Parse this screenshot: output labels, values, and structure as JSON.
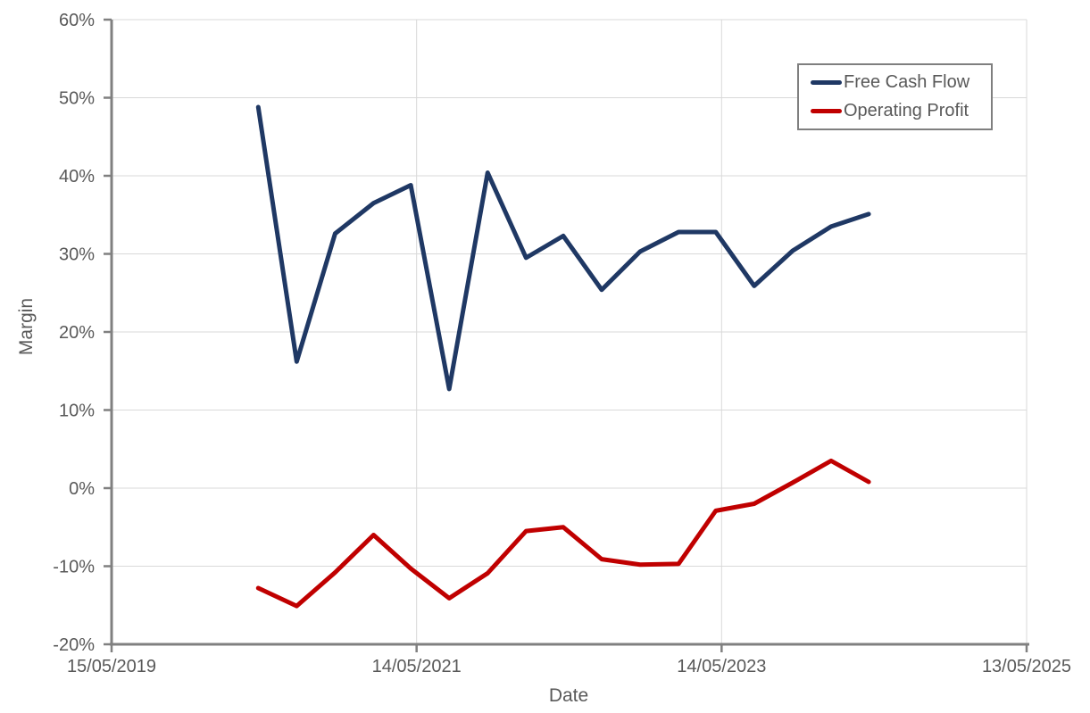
{
  "chart_data": {
    "type": "line",
    "title": "",
    "xlabel": "Date",
    "ylabel": "Margin",
    "grid": true,
    "legend_position": "top-right",
    "x_axis": {
      "range": [
        "15/05/2019",
        "13/05/2025"
      ],
      "tick_labels": [
        "15/05/2019",
        "14/05/2021",
        "14/05/2023",
        "13/05/2025"
      ]
    },
    "y_axis": {
      "min": -20,
      "max": 60,
      "step": 10,
      "unit": "%",
      "tick_labels": [
        "-20%",
        "-10%",
        "0%",
        "10%",
        "20%",
        "30%",
        "40%",
        "50%",
        "60%"
      ]
    },
    "x": [
      "30/04/2020",
      "31/07/2020",
      "31/10/2020",
      "31/01/2021",
      "30/04/2021",
      "31/07/2021",
      "31/10/2021",
      "31/01/2022",
      "30/04/2022",
      "31/07/2022",
      "31/10/2022",
      "31/01/2023",
      "30/04/2023",
      "31/07/2023",
      "31/10/2023",
      "31/01/2024",
      "30/04/2024"
    ],
    "series": [
      {
        "name": "Free Cash Flow",
        "color": "#1F3864",
        "values": [
          48.8,
          16.2,
          32.6,
          36.5,
          38.8,
          12.7,
          40.4,
          29.5,
          32.3,
          25.4,
          30.3,
          32.8,
          32.8,
          25.9,
          30.4,
          33.5,
          35.1
        ]
      },
      {
        "name": "Operating Profit",
        "color": "#C00000",
        "values": [
          -12.8,
          -15.1,
          -10.8,
          -6.0,
          -10.3,
          -14.1,
          -10.9,
          -5.5,
          -5.0,
          -9.1,
          -9.8,
          -9.7,
          -2.9,
          -2.0,
          0.7,
          3.5,
          0.8
        ]
      }
    ]
  },
  "colors": {
    "background": "#FFFFFF",
    "axis_line": "#808080",
    "gridline": "#D9D9D9",
    "tick_text": "#595959",
    "legend_border": "#7F7F7F"
  }
}
